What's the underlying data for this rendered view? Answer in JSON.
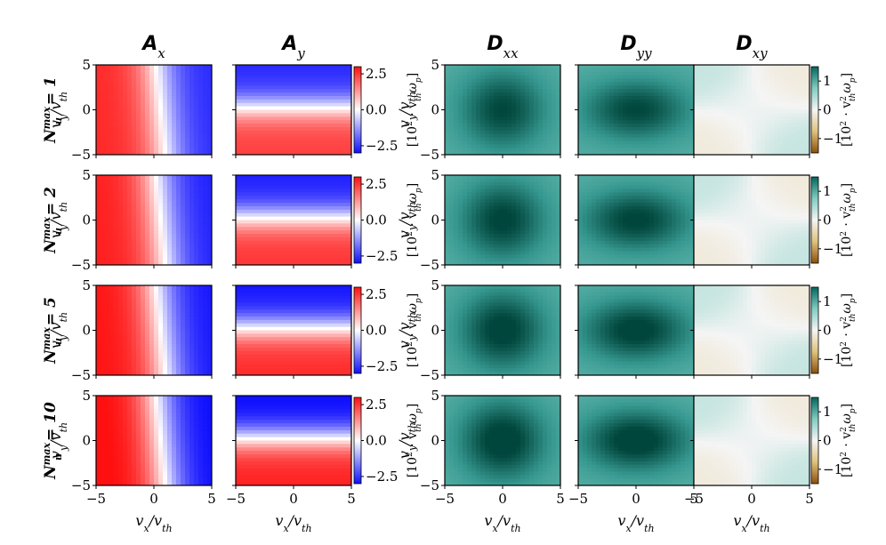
{
  "figure": {
    "columns": [
      {
        "id": "Ax",
        "base": "A",
        "sub": "x"
      },
      {
        "id": "Ay",
        "base": "A",
        "sub": "y"
      },
      {
        "id": "Dxx",
        "base": "D",
        "sub": "xx"
      },
      {
        "id": "Dyy",
        "base": "D",
        "sub": "yy"
      },
      {
        "id": "Dxy",
        "base": "D",
        "sub": "xy"
      }
    ],
    "rows": [
      {
        "label": "N",
        "sup": "max",
        "sub": "u",
        "value": "= 1"
      },
      {
        "label": "N",
        "sup": "max",
        "sub": "u",
        "value": "= 2"
      },
      {
        "label": "N",
        "sup": "max",
        "sub": "u",
        "value": "= 5"
      },
      {
        "label": "N",
        "sup": "max",
        "sub": "u",
        "value": "= 10"
      }
    ],
    "xlabel": "v_x/v_th",
    "ylabel": "v_y/v_th",
    "colorbars": {
      "A": {
        "label": "[10^2 · v_th ω_p]",
        "ticks": [
          "2.5",
          "0.0",
          "−2.5"
        ],
        "range": [
          -3,
          3
        ],
        "colormap": "bwr"
      },
      "D": {
        "label": "[10^2 · v_th^2 ω_p]",
        "ticks": [
          "1",
          "0",
          "−1"
        ],
        "range": [
          -1.5,
          1.5
        ],
        "colormap": "BrBG"
      }
    }
  },
  "chart_data": {
    "type": "heatmap",
    "grid": [
      4,
      5
    ],
    "x_axis": {
      "label": "v_x/v_th",
      "range": [
        -5,
        5
      ],
      "ticks": [
        -5,
        0,
        5
      ]
    },
    "y_axis": {
      "label": "v_y/v_th",
      "range": [
        -5,
        5
      ],
      "ticks": [
        -5,
        0,
        5
      ]
    },
    "panels": {
      "Ax": {
        "colormap": "bwr",
        "description": "positive (red) for v_x < ~0, negative (blue) for v_x > ~0, peak magnitude ~2.5"
      },
      "Ay": {
        "colormap": "bwr",
        "description": "negative (blue) for v_y > ~1, positive (red) for v_y < ~0, peak magnitude ~2.5"
      },
      "Dxx": {
        "colormap": "BrBG",
        "description": "positive everywhere, maximum ~1.5 near origin"
      },
      "Dyy": {
        "colormap": "BrBG",
        "description": "positive everywhere, maximum ~1.5 near origin"
      },
      "Dxy": {
        "colormap": "BrBG",
        "description": "small magnitude; quadrupole pattern, slightly negative in quadrants 2 and 4"
      }
    },
    "colorbar_A": {
      "ticks": [
        2.5,
        0.0,
        -2.5
      ]
    },
    "colorbar_D": {
      "ticks": [
        1,
        0,
        -1
      ]
    }
  }
}
